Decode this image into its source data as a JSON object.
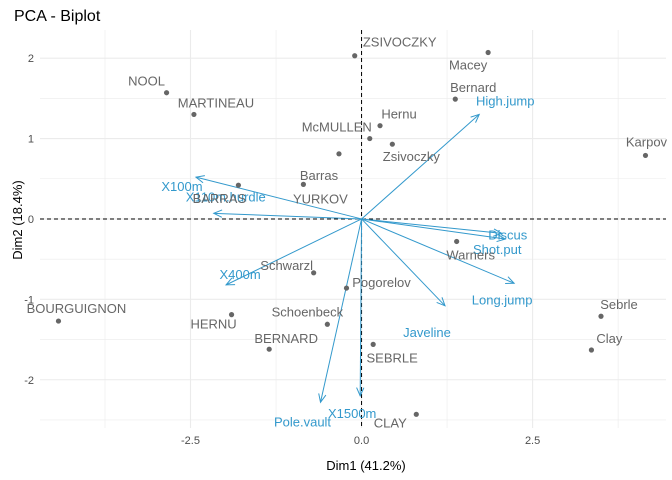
{
  "chart_data": {
    "type": "scatter",
    "title": "PCA - Biplot",
    "xlabel": "Dim1 (41.2%)",
    "ylabel": "Dim2 (18.4%)",
    "xlim": [
      -4.7,
      4.45
    ],
    "ylim": [
      -2.6,
      2.35
    ],
    "xticks": [
      -2.5,
      0.0,
      2.5
    ],
    "xtick_labels": [
      "-2.5",
      "0.0",
      "2.5"
    ],
    "yticks": [
      -2,
      -1,
      0,
      1,
      2
    ],
    "ytick_labels": [
      "-2",
      "-1",
      "0",
      "1",
      "2"
    ],
    "grid": true,
    "reference_lines": {
      "x": 0,
      "y": 0,
      "style": "dashed"
    },
    "colors": {
      "individuals": "#666666",
      "variables": "#3399cc",
      "grid": "#ebebeb",
      "reference": "#000000"
    },
    "individuals": [
      {
        "name": "ZSIVOCZKY",
        "x": -0.1,
        "y": 2.03
      },
      {
        "name": "Macey",
        "x": 1.85,
        "y": 2.07
      },
      {
        "name": "NOOL",
        "x": -2.85,
        "y": 1.57
      },
      {
        "name": "Bernard",
        "x": 1.37,
        "y": 1.49
      },
      {
        "name": "MARTINEAU",
        "x": -2.45,
        "y": 1.3
      },
      {
        "name": "Hernu",
        "x": 0.27,
        "y": 1.16
      },
      {
        "name": "McMULLEN",
        "x": 0.12,
        "y": 1.0
      },
      {
        "name": "Zsivoczky",
        "x": 0.45,
        "y": 0.93
      },
      {
        "name": "Karpov",
        "x": 4.15,
        "y": 0.79
      },
      {
        "name": "Barras",
        "x": -0.33,
        "y": 0.81
      },
      {
        "name": "BARRAS",
        "x": -1.8,
        "y": 0.42
      },
      {
        "name": "YURKOV",
        "x": -0.85,
        "y": 0.43
      },
      {
        "name": "Warners",
        "x": 1.39,
        "y": -0.28
      },
      {
        "name": "Schwarzl",
        "x": -0.7,
        "y": -0.67
      },
      {
        "name": "Pogorelov",
        "x": -0.22,
        "y": -0.86
      },
      {
        "name": "BOURGUIGNON",
        "x": -4.43,
        "y": -1.27
      },
      {
        "name": "Sebrle",
        "x": 3.5,
        "y": -1.21
      },
      {
        "name": "HERNU",
        "x": -1.9,
        "y": -1.19
      },
      {
        "name": "Schoenbeck",
        "x": -0.5,
        "y": -1.31
      },
      {
        "name": "BERNARD",
        "x": -1.35,
        "y": -1.62
      },
      {
        "name": "SEBRLE",
        "x": 0.17,
        "y": -1.56
      },
      {
        "name": "Clay",
        "x": 3.36,
        "y": -1.63
      },
      {
        "name": "CLAY",
        "x": 0.8,
        "y": -2.43
      }
    ],
    "variables": [
      {
        "name": "High.jump",
        "x": 1.72,
        "y": 1.3
      },
      {
        "name": "X100m",
        "x": -2.42,
        "y": 0.52
      },
      {
        "name": "X110m.hurdle",
        "x": -2.16,
        "y": 0.07
      },
      {
        "name": "Discus",
        "x": 2.05,
        "y": -0.18
      },
      {
        "name": "Shot.put",
        "x": 2.1,
        "y": -0.25
      },
      {
        "name": "X400m",
        "x": -1.98,
        "y": -0.82
      },
      {
        "name": "Long.jump",
        "x": 2.23,
        "y": -0.8
      },
      {
        "name": "Javeline",
        "x": 1.22,
        "y": -1.08
      },
      {
        "name": "X1500m",
        "x": -0.02,
        "y": -2.2
      },
      {
        "name": "Pole.vault",
        "x": -0.6,
        "y": -2.28
      }
    ]
  }
}
